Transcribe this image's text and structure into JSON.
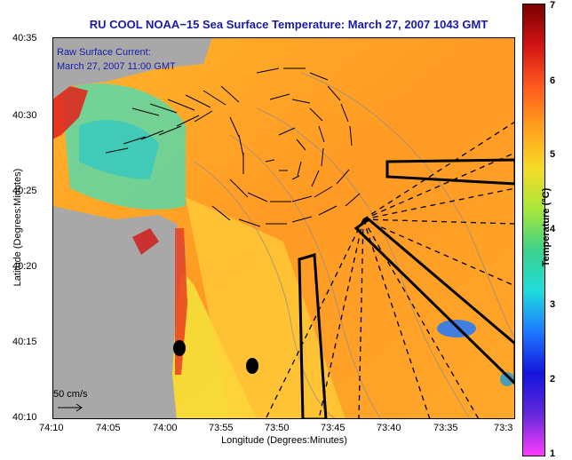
{
  "title": "RU COOL  NOAA−15  Sea Surface Temperature:  March 27, 2007 1043 GMT",
  "legend": {
    "line1": "Raw Surface Current:",
    "line2": "March 27, 2007 11:00 GMT"
  },
  "scale_label": "50 cm/s",
  "xlabel": "Longitude (Degrees:Minutes)",
  "ylabel": "Latitude (Degrees:Minutes)",
  "xticks": [
    "74:10",
    "74:05",
    "74:00",
    "73:55",
    "73:50",
    "73:45",
    "73:40",
    "73:35",
    "73:3"
  ],
  "yticks": [
    "40:35",
    "40:30",
    "40:25",
    "40:20",
    "40:15",
    "40:10"
  ],
  "colorbar": {
    "label": "Temperature (°C)",
    "ticks": [
      "7",
      "6",
      "5",
      "4",
      "3",
      "2",
      "1"
    ],
    "colors": [
      "#7a0000",
      "#d21414",
      "#ff5a1e",
      "#ffa01e",
      "#f5dc28",
      "#a8e63c",
      "#3cd28c",
      "#1edcdc",
      "#1e78ff",
      "#1414dc",
      "#6428dc",
      "#ff3cff"
    ]
  }
}
